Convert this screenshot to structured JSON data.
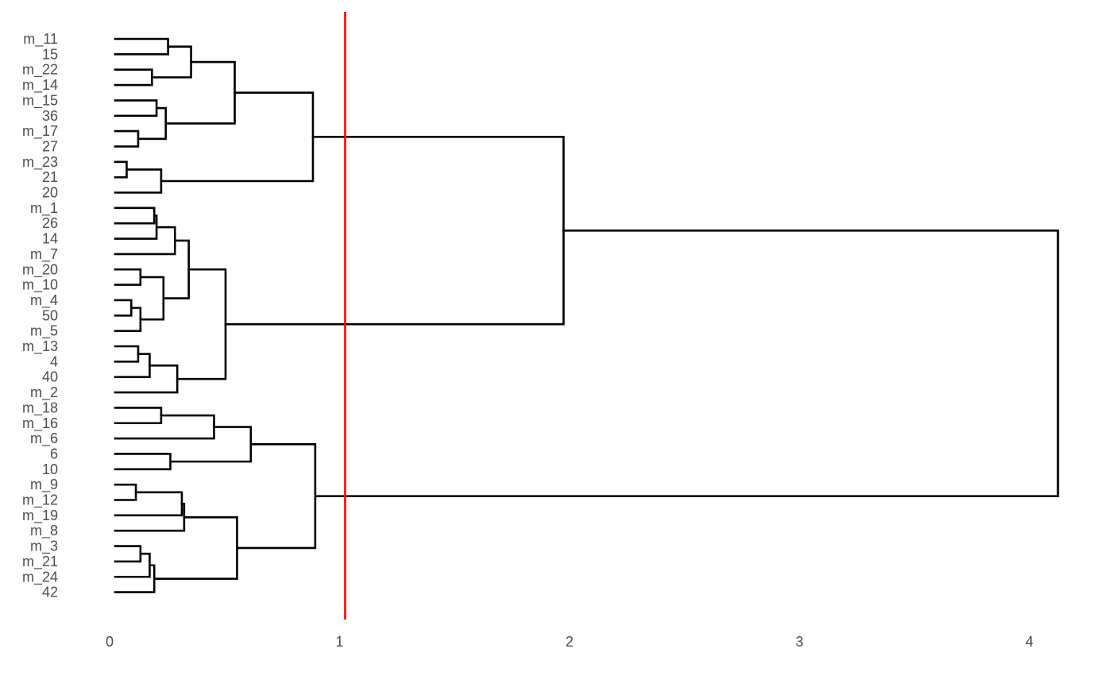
{
  "chart_data": {
    "type": "dendrogram",
    "orientation": "horizontal",
    "leaves": [
      "m_11",
      "15",
      "m_22",
      "m_14",
      "m_15",
      "36",
      "m_17",
      "27",
      "m_23",
      "21",
      "20",
      "m_1",
      "26",
      "14",
      "m_7",
      "m_20",
      "m_10",
      "m_4",
      "50",
      "m_5",
      "m_13",
      "4",
      "40",
      "m_2",
      "m_18",
      "m_16",
      "m_6",
      "6",
      "10",
      "m_9",
      "m_12",
      "m_19",
      "m_8",
      "m_3",
      "m_21",
      "m_24",
      "42"
    ],
    "merges": [
      {
        "a": "L0",
        "b": "L1",
        "height": 0.23
      },
      {
        "a": "L2",
        "b": "L3",
        "height": 0.16
      },
      {
        "a": "M0",
        "b": "M1",
        "height": 0.33
      },
      {
        "a": "L4",
        "b": "L5",
        "height": 0.18
      },
      {
        "a": "L6",
        "b": "L7",
        "height": 0.1
      },
      {
        "a": "M3",
        "b": "M4",
        "height": 0.22
      },
      {
        "a": "M2",
        "b": "M5",
        "height": 0.52
      },
      {
        "a": "L8",
        "b": "L9",
        "height": 0.05
      },
      {
        "a": "M7",
        "b": "L10",
        "height": 0.2
      },
      {
        "a": "M6",
        "b": "M8",
        "height": 0.86
      },
      {
        "a": "L11",
        "b": "L12",
        "height": 0.17
      },
      {
        "a": "M10",
        "b": "L13",
        "height": 0.18
      },
      {
        "a": "M11",
        "b": "L14",
        "height": 0.26
      },
      {
        "a": "L15",
        "b": "L16",
        "height": 0.11
      },
      {
        "a": "L17",
        "b": "L18",
        "height": 0.07
      },
      {
        "a": "M14",
        "b": "L19",
        "height": 0.11
      },
      {
        "a": "M13",
        "b": "M15",
        "height": 0.21
      },
      {
        "a": "M12",
        "b": "M16",
        "height": 0.32
      },
      {
        "a": "L20",
        "b": "L21",
        "height": 0.1
      },
      {
        "a": "M18",
        "b": "L22",
        "height": 0.15
      },
      {
        "a": "M19",
        "b": "L23",
        "height": 0.27
      },
      {
        "a": "M17",
        "b": "M20",
        "height": 0.48
      },
      {
        "a": "M9",
        "b": "M21",
        "height": 1.95
      },
      {
        "a": "L24",
        "b": "L25",
        "height": 0.2
      },
      {
        "a": "M23",
        "b": "L26",
        "height": 0.43
      },
      {
        "a": "L27",
        "b": "L28",
        "height": 0.24
      },
      {
        "a": "M24",
        "b": "M25",
        "height": 0.59
      },
      {
        "a": "L29",
        "b": "L30",
        "height": 0.09
      },
      {
        "a": "M27",
        "b": "L31",
        "height": 0.29
      },
      {
        "a": "M28",
        "b": "L32",
        "height": 0.3
      },
      {
        "a": "L33",
        "b": "L34",
        "height": 0.11
      },
      {
        "a": "M30",
        "b": "L35",
        "height": 0.15
      },
      {
        "a": "M31",
        "b": "L36",
        "height": 0.17
      },
      {
        "a": "M29",
        "b": "M32",
        "height": 0.53
      },
      {
        "a": "M26",
        "b": "M33",
        "height": 0.87
      },
      {
        "a": "M22",
        "b": "M34",
        "height": 4.1
      }
    ],
    "x_ticks": [
      0,
      1,
      2,
      3,
      4
    ],
    "xlim": [
      0,
      4.1
    ],
    "cut_line": {
      "value": 1.0,
      "color": "#ff0000"
    },
    "line_color": "#000000",
    "grid": false
  }
}
